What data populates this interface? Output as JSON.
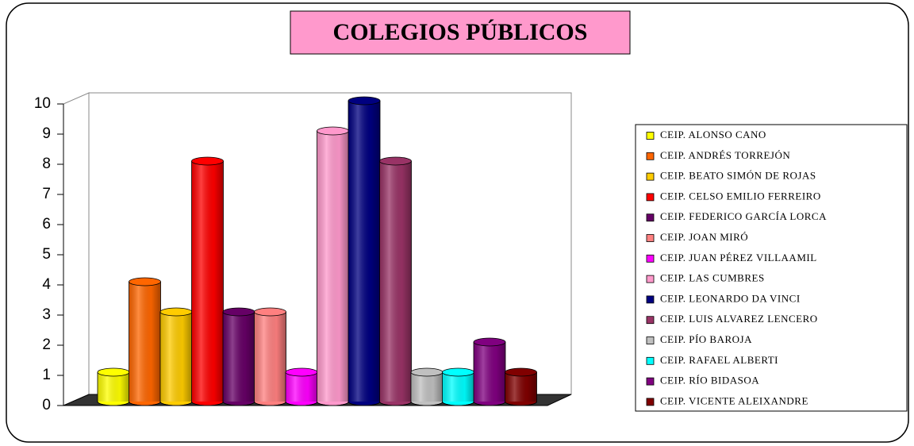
{
  "chart_data": {
    "type": "bar",
    "title": "COLEGIOS PÚBLICOS",
    "categories": [
      "CEIP. ALONSO CANO",
      "CEIP. ANDRÉS TORREJÓN",
      "CEIP. BEATO SIMÓN DE ROJAS",
      "CEIP. CELSO EMILIO FERREIRO",
      "CEIP. FEDERICO GARCÍA LORCA",
      "CEIP. JOAN MIRÓ",
      "CEIP. JUAN PÉREZ VILLAAMIL",
      "CEIP. LAS CUMBRES",
      "CEIP. LEONARDO DA VINCI",
      "CEIP. LUIS ALVAREZ LENCERO",
      "CEIP. PÍO BAROJA",
      "CEIP. RAFAEL ALBERTI",
      "CEIP. RÍO BIDASOA",
      "CEIP. VICENTE ALEIXANDRE"
    ],
    "values": [
      1,
      4,
      3,
      8,
      3,
      3,
      1,
      9,
      10,
      8,
      1,
      1,
      2,
      1
    ],
    "colors": [
      "#ffff00",
      "#ff6600",
      "#ffcc00",
      "#ff0000",
      "#660066",
      "#ff8080",
      "#ff00ff",
      "#ff99cc",
      "#000080",
      "#993366",
      "#c0c0c0",
      "#00ffff",
      "#800080",
      "#800000"
    ],
    "ylim": [
      0,
      10
    ],
    "yticks": [
      0,
      1,
      2,
      3,
      4,
      5,
      6,
      7,
      8,
      9,
      10
    ],
    "legend": "right"
  }
}
